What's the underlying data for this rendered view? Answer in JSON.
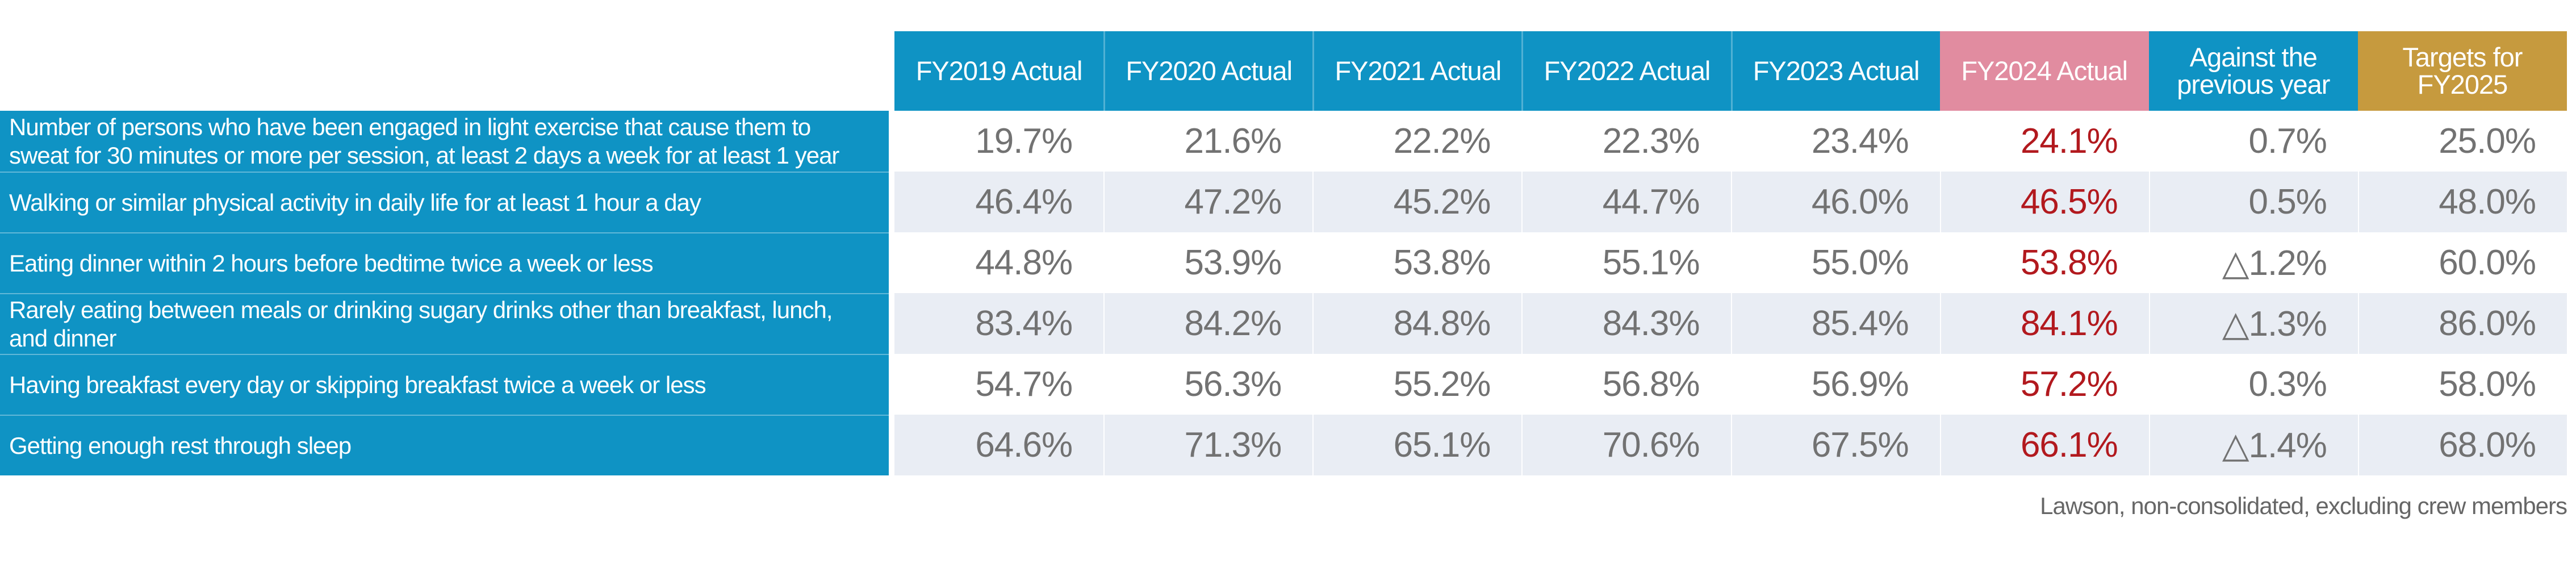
{
  "colors": {
    "header_blue": "#0f93c4",
    "fy2024_pink": "#e18ca0",
    "target_gold": "#c69a3e",
    "row_stripe": "#e9edf4",
    "value_gray": "#727272",
    "fy2024_red": "#b2191e"
  },
  "table": {
    "headers": [
      "FY2019 Actual",
      "FY2020 Actual",
      "FY2021 Actual",
      "FY2022 Actual",
      "FY2023 Actual",
      "FY2024 Actual",
      "Against the previous year",
      "Targets for FY2025"
    ],
    "rows": [
      {
        "label": "Number of persons who have been engaged in light exercise that cause them to sweat for 30 minutes or more per session, at least 2 days a week for at least 1 year",
        "values": [
          "19.7%",
          "21.6%",
          "22.2%",
          "22.3%",
          "23.4%",
          "24.1%",
          "0.7%",
          "25.0%"
        ]
      },
      {
        "label": "Walking or similar physical activity in daily life for at least 1 hour a day",
        "values": [
          "46.4%",
          "47.2%",
          "45.2%",
          "44.7%",
          "46.0%",
          "46.5%",
          "0.5%",
          "48.0%"
        ]
      },
      {
        "label": "Eating dinner within 2 hours before bedtime twice a week or less",
        "values": [
          "44.8%",
          "53.9%",
          "53.8%",
          "55.1%",
          "55.0%",
          "53.8%",
          "△1.2%",
          "60.0%"
        ]
      },
      {
        "label": "Rarely eating between meals or drinking sugary drinks other than breakfast, lunch, and dinner",
        "values": [
          "83.4%",
          "84.2%",
          "84.8%",
          "84.3%",
          "85.4%",
          "84.1%",
          "△1.3%",
          "86.0%"
        ]
      },
      {
        "label": "Having breakfast every day or skipping breakfast twice a week or less",
        "values": [
          "54.7%",
          "56.3%",
          "55.2%",
          "56.8%",
          "56.9%",
          "57.2%",
          "0.3%",
          "58.0%"
        ]
      },
      {
        "label": "Getting enough rest through sleep",
        "values": [
          "64.6%",
          "71.3%",
          "65.1%",
          "70.6%",
          "67.5%",
          "66.1%",
          "△1.4%",
          "68.0%"
        ]
      }
    ],
    "footnote": "Lawson, non-consolidated, excluding crew members"
  },
  "chart_data": {
    "type": "table",
    "title": "Health indicators: FY2019–FY2024 actuals, change vs previous year, and FY2025 targets (%)",
    "columns": [
      "FY2019 Actual",
      "FY2020 Actual",
      "FY2021 Actual",
      "FY2022 Actual",
      "FY2023 Actual",
      "FY2024 Actual",
      "Against the previous year",
      "Targets for FY2025"
    ],
    "rows": [
      {
        "label": "Number of persons who have been engaged in light exercise that cause them to sweat for 30 minutes or more per session, at least 2 days a week for at least 1 year",
        "actuals_fy2019_to_fy2024": [
          19.7,
          21.6,
          22.2,
          22.3,
          23.4,
          24.1
        ],
        "change_vs_previous_year": 0.7,
        "target_fy2025": 25.0
      },
      {
        "label": "Walking or similar physical activity in daily life for at least 1 hour a day",
        "actuals_fy2019_to_fy2024": [
          46.4,
          47.2,
          45.2,
          44.7,
          46.0,
          46.5
        ],
        "change_vs_previous_year": 0.5,
        "target_fy2025": 48.0
      },
      {
        "label": "Eating dinner within 2 hours before bedtime twice a week or less",
        "actuals_fy2019_to_fy2024": [
          44.8,
          53.9,
          53.8,
          55.1,
          55.0,
          53.8
        ],
        "change_vs_previous_year": -1.2,
        "target_fy2025": 60.0
      },
      {
        "label": "Rarely eating between meals or drinking sugary drinks other than breakfast, lunch, and dinner",
        "actuals_fy2019_to_fy2024": [
          83.4,
          84.2,
          84.8,
          84.3,
          85.4,
          84.1
        ],
        "change_vs_previous_year": -1.3,
        "target_fy2025": 86.0
      },
      {
        "label": "Having breakfast every day or skipping breakfast twice a week or less",
        "actuals_fy2019_to_fy2024": [
          54.7,
          56.3,
          55.2,
          56.8,
          56.9,
          57.2
        ],
        "change_vs_previous_year": 0.3,
        "target_fy2025": 58.0
      },
      {
        "label": "Getting enough rest through sleep",
        "actuals_fy2019_to_fy2024": [
          64.6,
          71.3,
          65.1,
          70.6,
          67.5,
          66.1
        ],
        "change_vs_previous_year": -1.4,
        "target_fy2025": 68.0
      }
    ],
    "units": "percent",
    "negative_marker": "△ (white triangle denotes decrease)",
    "notes": "Lawson, non-consolidated, excluding crew members"
  }
}
